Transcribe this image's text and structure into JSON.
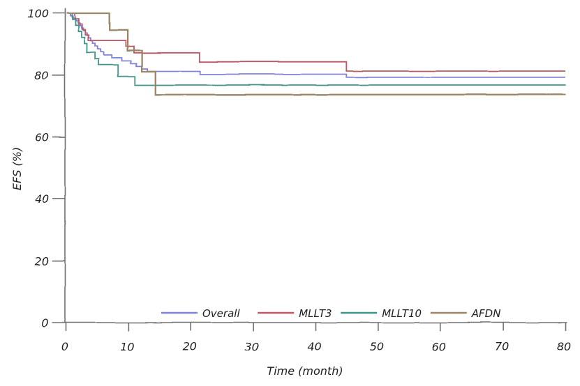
{
  "figure": {
    "background": "#ffffff",
    "style": "hand-drawn-xkcd",
    "axis_color": "#6e6e6e",
    "text_color": "#1f1f1f"
  },
  "chart_data": {
    "type": "line",
    "subtype": "kaplan-meier-step",
    "title": "",
    "xlabel": "Time (month)",
    "ylabel": "EFS (%)",
    "xlim": [
      0,
      80
    ],
    "ylim": [
      0,
      100
    ],
    "x_ticks": [
      0,
      10,
      20,
      30,
      40,
      50,
      60,
      70,
      80
    ],
    "y_ticks": [
      0,
      20,
      40,
      60,
      80,
      100
    ],
    "grid": false,
    "legend_position": "bottom-center-inside",
    "series": [
      {
        "name": "Overall",
        "color": "#8181d8",
        "stroke_width": 1.8,
        "points": [
          [
            0,
            100
          ],
          [
            0.6,
            99.2
          ],
          [
            1.0,
            98.4
          ],
          [
            1.4,
            97.6
          ],
          [
            1.8,
            96.8
          ],
          [
            2.1,
            96.0
          ],
          [
            2.4,
            95.2
          ],
          [
            2.7,
            94.4
          ],
          [
            3.0,
            93.6
          ],
          [
            3.3,
            92.8
          ],
          [
            3.6,
            92.0
          ],
          [
            3.9,
            91.1
          ],
          [
            4.2,
            90.3
          ],
          [
            4.6,
            89.4
          ],
          [
            5.0,
            88.4
          ],
          [
            5.5,
            87.5
          ],
          [
            6.0,
            86.5
          ],
          [
            7.3,
            85.6
          ],
          [
            8.9,
            84.6
          ],
          [
            10.3,
            83.7
          ],
          [
            11.2,
            82.9
          ],
          [
            12.1,
            82.1
          ],
          [
            13.0,
            81.3
          ],
          [
            21.5,
            80.3
          ],
          [
            44.9,
            79.3
          ],
          [
            80,
            79.3
          ]
        ]
      },
      {
        "name": "MLLT3",
        "color": "#bb5864",
        "stroke_width": 1.8,
        "points": [
          [
            0,
            100
          ],
          [
            1.3,
            98.2
          ],
          [
            1.9,
            96.5
          ],
          [
            2.5,
            94.7
          ],
          [
            3.0,
            93.0
          ],
          [
            3.5,
            91.2
          ],
          [
            9.5,
            89.3
          ],
          [
            10.8,
            87.2
          ],
          [
            21.4,
            84.3
          ],
          [
            44.9,
            81.3
          ],
          [
            80,
            81.3
          ]
        ]
      },
      {
        "name": "MLLT10",
        "color": "#3f948a",
        "stroke_width": 1.8,
        "points": [
          [
            0,
            100
          ],
          [
            0.9,
            98.0
          ],
          [
            1.4,
            96.1
          ],
          [
            1.9,
            94.1
          ],
          [
            2.4,
            92.2
          ],
          [
            2.9,
            90.2
          ],
          [
            3.3,
            87.3
          ],
          [
            4.6,
            85.2
          ],
          [
            5.2,
            83.3
          ],
          [
            8.3,
            79.6
          ],
          [
            11.0,
            76.8
          ],
          [
            80,
            76.8
          ]
        ]
      },
      {
        "name": "AFDN",
        "color": "#9a8565",
        "stroke_width": 2.3,
        "points": [
          [
            0,
            100
          ],
          [
            6.9,
            94.5
          ],
          [
            9.8,
            88.0
          ],
          [
            12.1,
            81.2
          ],
          [
            14.3,
            73.7
          ],
          [
            80,
            73.7
          ]
        ]
      }
    ]
  }
}
